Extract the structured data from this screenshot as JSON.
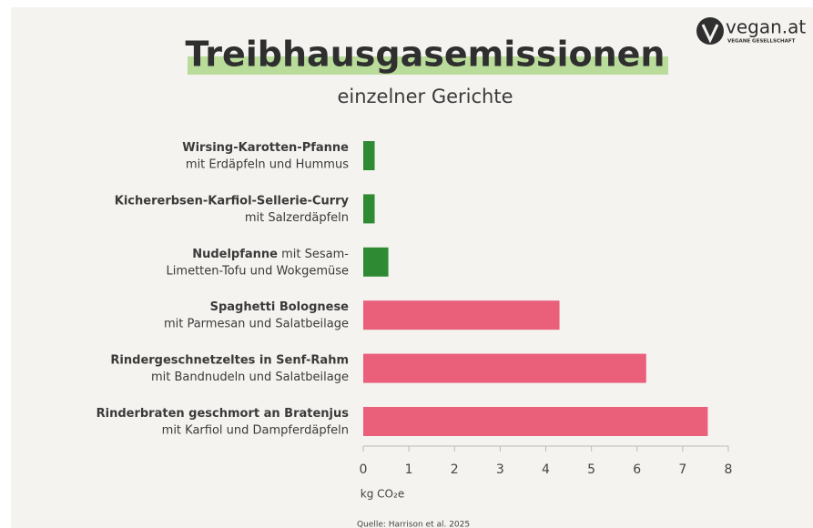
{
  "chart_data": {
    "type": "barh",
    "title": "Treibhausgasemissionen",
    "subtitle": "einzelner Gerichte",
    "logo": {
      "name": "vegan.at",
      "tagline": "VEGANE GESELLSCHAFT"
    },
    "categories": [
      {
        "name": "Wirsing-Karotten-Pfanne",
        "detail": [
          "mit Erdäpfeln und Hummus"
        ]
      },
      {
        "name": "Kichererbsen-Karfiol-Sellerie-Curry",
        "detail": [
          "mit Salzerdäpfeln"
        ]
      },
      {
        "name": "Nudelpfanne",
        "detail": [
          "mit Sesam-",
          "Limetten-Tofu und Wokgemüse"
        ]
      },
      {
        "name": "Spaghetti Bolognese",
        "detail": [
          "mit Parmesan und Salatbeilage"
        ]
      },
      {
        "name": "Rindergeschnetzeltes in Senf-Rahm",
        "detail": [
          "mit Bandnudeln und Salatbeilage"
        ]
      },
      {
        "name": "Rinderbraten geschmort an Bratenjus",
        "detail": [
          "mit Karfiol und Dampferdäpfeln"
        ]
      }
    ],
    "values": [
      0.25,
      0.25,
      0.55,
      4.3,
      6.2,
      7.55
    ],
    "colors": [
      "#2e8b34",
      "#2e8b34",
      "#2e8b34",
      "#ea607b",
      "#ea607b",
      "#ea607b"
    ],
    "xlim": [
      0,
      8
    ],
    "xticks": [
      0,
      1,
      2,
      3,
      4,
      5,
      6,
      7,
      8
    ],
    "x_label": "kg CO₂e",
    "source": "Quelle: Harrison et al. 2025"
  }
}
